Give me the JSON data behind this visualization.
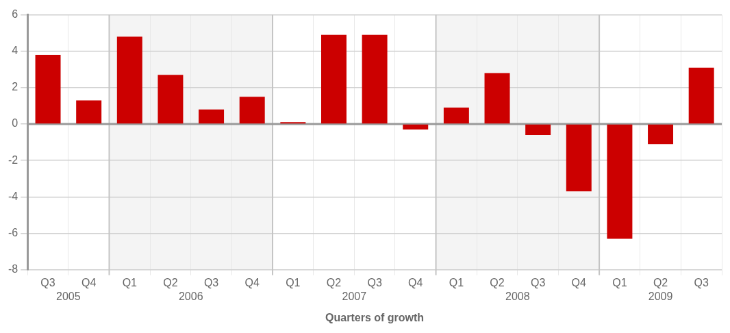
{
  "chart_data": {
    "type": "bar",
    "xlabel": "Quarters of growth",
    "categories": [
      "Q3",
      "Q4",
      "Q1",
      "Q2",
      "Q3",
      "Q4",
      "Q1",
      "Q2",
      "Q3",
      "Q4",
      "Q1",
      "Q2",
      "Q3",
      "Q4",
      "Q1",
      "Q2",
      "Q3"
    ],
    "values": [
      3.8,
      1.3,
      4.8,
      2.7,
      0.8,
      1.5,
      0.1,
      4.9,
      4.9,
      -0.3,
      0.9,
      2.8,
      -0.6,
      -3.7,
      -6.3,
      -1.1,
      3.1
    ],
    "color": "#cc0000",
    "ylim": [
      -8,
      6
    ],
    "yticks": [
      -8,
      -6,
      -4,
      -2,
      0,
      2,
      4,
      6
    ],
    "annotations": [
      "2005",
      "2006",
      "2007",
      "2008",
      "2009"
    ],
    "grid": true,
    "legend": false
  }
}
